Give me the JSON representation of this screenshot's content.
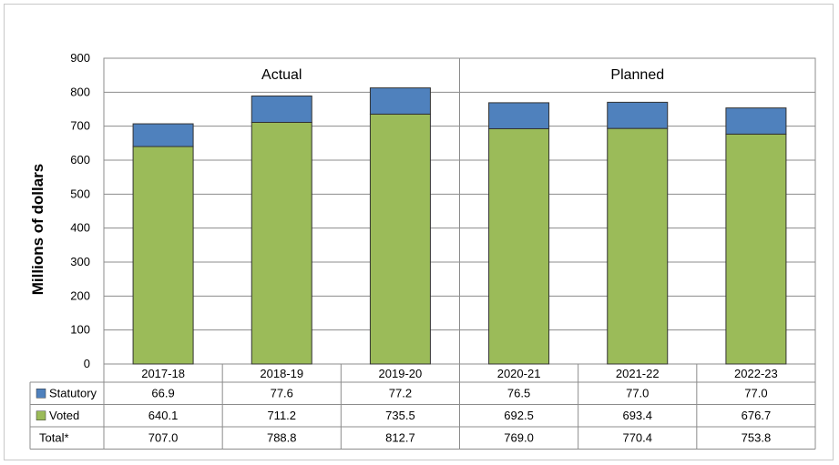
{
  "chart_data": {
    "type": "bar",
    "stacked": true,
    "ylabel": "Millions of dollars",
    "ylim": [
      0,
      900
    ],
    "yticks": [
      0,
      100,
      200,
      300,
      400,
      500,
      600,
      700,
      800,
      900
    ],
    "ytick_labels": [
      "0",
      "100",
      "200",
      "300",
      "400",
      "500",
      "600",
      "700",
      "800",
      "900"
    ],
    "grid": true,
    "categories": [
      "2017-18",
      "2018-19",
      "2019-20",
      "2020-21",
      "2021-22",
      "2022-23"
    ],
    "groups": [
      {
        "label": "Actual",
        "span": 3
      },
      {
        "label": "Planned",
        "span": 3
      }
    ],
    "series": [
      {
        "name": "Voted",
        "color": "#9BBB59",
        "values": [
          640.1,
          711.2,
          735.5,
          692.5,
          693.4,
          676.7
        ]
      },
      {
        "name": "Statutory",
        "color": "#4F81BD",
        "values": [
          66.9,
          77.6,
          77.2,
          76.5,
          77.0,
          77.0
        ]
      }
    ],
    "table": {
      "rows": [
        {
          "label": "Statutory",
          "swatch": "#4F81BD",
          "values": [
            "66.9",
            "77.6",
            "77.2",
            "76.5",
            "77.0",
            "77.0"
          ]
        },
        {
          "label": "Voted",
          "swatch": "#9BBB59",
          "values": [
            "640.1",
            "711.2",
            "735.5",
            "692.5",
            "693.4",
            "676.7"
          ]
        },
        {
          "label": "Total*",
          "swatch": null,
          "values": [
            "707.0",
            "788.8",
            "812.7",
            "769.0",
            "770.4",
            "753.8"
          ]
        }
      ]
    }
  }
}
